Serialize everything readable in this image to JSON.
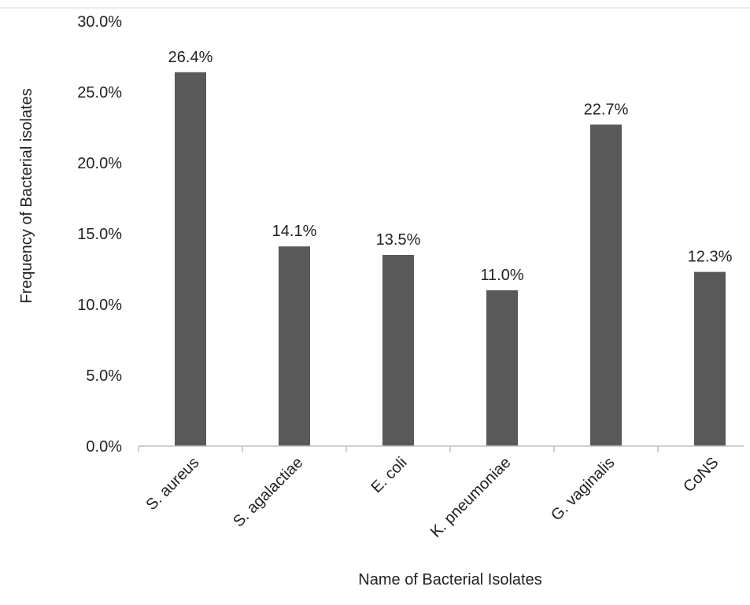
{
  "chart_data": {
    "type": "bar",
    "title": "",
    "xlabel": "Name of Bacterial Isolates",
    "ylabel": "Frequency of Bacterial isolates",
    "categories": [
      "S. aureus",
      "S. agalactiae",
      "E. coli",
      "K. pneumoniae",
      "G. vaginalis",
      "CoNS"
    ],
    "values": [
      26.4,
      14.1,
      13.5,
      11.0,
      22.7,
      12.3
    ],
    "data_labels": [
      "26.4%",
      "14.1%",
      "13.5%",
      "11.0%",
      "22.7%",
      "12.3%"
    ],
    "ylim": [
      0,
      30
    ],
    "yticks": [
      0,
      5,
      10,
      15,
      20,
      25,
      30
    ],
    "ytick_labels": [
      "0.0%",
      "5.0%",
      "10.0%",
      "15.0%",
      "20.0%",
      "25.0%",
      "30.0%"
    ],
    "grid": false,
    "legend": "none",
    "bar_color": "#595959"
  }
}
